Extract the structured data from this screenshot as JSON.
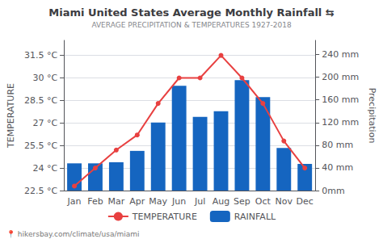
{
  "chart_data": {
    "type": "bar",
    "title": "Miami United States Average Monthly Rainfall ⇆",
    "subtitle": "AVERAGE PRECIPITATION & TEMPERATURES 1927-2018",
    "annotations": [
      "📍 hikersbay.com/climate/usa/miami"
    ],
    "categories": [
      "Jan",
      "Feb",
      "Mar",
      "Apr",
      "May",
      "Jun",
      "Jul",
      "Aug",
      "Sep",
      "Oct",
      "Nov",
      "Dec"
    ],
    "series": [
      {
        "name": "TEMPERATURE",
        "type": "line",
        "color": "#e84040",
        "marker": "circle",
        "values": [
          22.8,
          24.0,
          25.2,
          26.2,
          28.3,
          30.0,
          30.0,
          31.5,
          30.0,
          28.3,
          25.8,
          24.0
        ]
      },
      {
        "name": "RAINFALL",
        "type": "bar",
        "color": "#1565c0",
        "axis": "y2",
        "values": [
          48,
          48,
          50,
          70,
          120,
          185,
          130,
          140,
          195,
          165,
          75,
          47
        ]
      }
    ],
    "ylabel": "TEMPERATURE",
    "y2label": "Precipitation",
    "ylim": [
      22.5,
      32.5
    ],
    "yticks": [
      {
        "value": 22.5,
        "label": "22.5 °C"
      },
      {
        "value": 24.0,
        "label": "24 °C"
      },
      {
        "value": 25.5,
        "label": "25.5 °C"
      },
      {
        "value": 27.0,
        "label": "27 °C"
      },
      {
        "value": 28.5,
        "label": "28.5 °C"
      },
      {
        "value": 30.0,
        "label": "30 °C"
      },
      {
        "value": 31.5,
        "label": "31.5 °C"
      }
    ],
    "y2lim": [
      0,
      265
    ],
    "y2ticks": [
      {
        "value": 0,
        "label": "0mm"
      },
      {
        "value": 40,
        "label": "40 mm"
      },
      {
        "value": 80,
        "label": "80 mm"
      },
      {
        "value": 120,
        "label": "120 mm"
      },
      {
        "value": 160,
        "label": "160 mm"
      },
      {
        "value": 200,
        "label": "200 mm"
      },
      {
        "value": 240,
        "label": "240 mm"
      }
    ],
    "grid": true,
    "legend": "bottom"
  }
}
